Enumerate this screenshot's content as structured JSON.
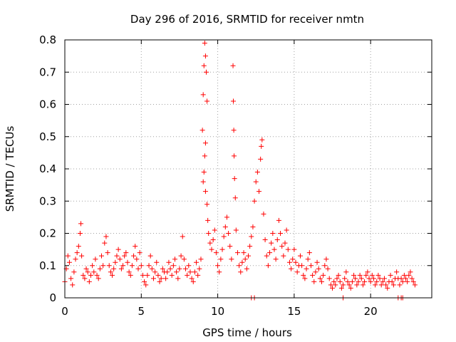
{
  "chart_data": {
    "type": "scatter",
    "title": "Day 296 of 2016, SRMTID for receiver nmtn",
    "xlabel": "GPS time / hours",
    "ylabel": "SRMTID / TECUs",
    "xlim": [
      0,
      24
    ],
    "ylim": [
      0,
      0.8
    ],
    "grid": true,
    "marker": "+",
    "color": "#ff0000",
    "x_ticks": [
      {
        "value": 0,
        "label": "0"
      },
      {
        "value": 5,
        "label": "5"
      },
      {
        "value": 10,
        "label": "10"
      },
      {
        "value": 15,
        "label": "15"
      },
      {
        "value": 20,
        "label": "20"
      }
    ],
    "y_ticks": [
      {
        "value": 0,
        "label": "0"
      },
      {
        "value": 0.1,
        "label": "0.1"
      },
      {
        "value": 0.2,
        "label": "0.2"
      },
      {
        "value": 0.3,
        "label": "0.3"
      },
      {
        "value": 0.4,
        "label": "0.4"
      },
      {
        "value": 0.5,
        "label": "0.5"
      },
      {
        "value": 0.6,
        "label": "0.6"
      },
      {
        "value": 0.7,
        "label": "0.7"
      },
      {
        "value": 0.8,
        "label": "0.8"
      }
    ],
    "series": [
      {
        "name": "SRMTID",
        "points": [
          [
            0.0,
            0.05
          ],
          [
            0.1,
            0.09
          ],
          [
            0.2,
            0.13
          ],
          [
            0.3,
            0.11
          ],
          [
            0.4,
            0.06
          ],
          [
            0.5,
            0.04
          ],
          [
            0.6,
            0.08
          ],
          [
            0.7,
            0.12
          ],
          [
            0.8,
            0.14
          ],
          [
            0.9,
            0.16
          ],
          [
            1.0,
            0.2
          ],
          [
            1.05,
            0.23
          ],
          [
            1.1,
            0.13
          ],
          [
            1.2,
            0.07
          ],
          [
            1.3,
            0.06
          ],
          [
            1.4,
            0.09
          ],
          [
            1.5,
            0.08
          ],
          [
            1.6,
            0.05
          ],
          [
            1.7,
            0.07
          ],
          [
            1.8,
            0.1
          ],
          [
            1.9,
            0.08
          ],
          [
            2.0,
            0.12
          ],
          [
            2.1,
            0.07
          ],
          [
            2.2,
            0.06
          ],
          [
            2.3,
            0.09
          ],
          [
            2.4,
            0.13
          ],
          [
            2.5,
            0.1
          ],
          [
            2.6,
            0.17
          ],
          [
            2.7,
            0.19
          ],
          [
            2.8,
            0.14
          ],
          [
            2.9,
            0.1
          ],
          [
            3.0,
            0.08
          ],
          [
            3.1,
            0.07
          ],
          [
            3.2,
            0.09
          ],
          [
            3.3,
            0.11
          ],
          [
            3.4,
            0.13
          ],
          [
            3.5,
            0.15
          ],
          [
            3.6,
            0.12
          ],
          [
            3.7,
            0.09
          ],
          [
            3.8,
            0.1
          ],
          [
            3.9,
            0.13
          ],
          [
            4.0,
            0.14
          ],
          [
            4.1,
            0.11
          ],
          [
            4.2,
            0.08
          ],
          [
            4.3,
            0.07
          ],
          [
            4.4,
            0.1
          ],
          [
            4.5,
            0.13
          ],
          [
            4.6,
            0.16
          ],
          [
            4.7,
            0.12
          ],
          [
            4.8,
            0.09
          ],
          [
            4.9,
            0.14
          ],
          [
            5.0,
            0.1
          ],
          [
            5.1,
            0.07
          ],
          [
            5.2,
            0.05
          ],
          [
            5.3,
            0.04
          ],
          [
            5.4,
            0.07
          ],
          [
            5.5,
            0.1
          ],
          [
            5.6,
            0.13
          ],
          [
            5.7,
            0.09
          ],
          [
            5.8,
            0.06
          ],
          [
            5.9,
            0.08
          ],
          [
            6.0,
            0.11
          ],
          [
            6.1,
            0.07
          ],
          [
            6.2,
            0.05
          ],
          [
            6.3,
            0.06
          ],
          [
            6.4,
            0.09
          ],
          [
            6.5,
            0.08
          ],
          [
            6.6,
            0.06
          ],
          [
            6.7,
            0.08
          ],
          [
            6.8,
            0.11
          ],
          [
            6.9,
            0.09
          ],
          [
            7.0,
            0.07
          ],
          [
            7.1,
            0.1
          ],
          [
            7.2,
            0.12
          ],
          [
            7.3,
            0.08
          ],
          [
            7.4,
            0.06
          ],
          [
            7.5,
            0.09
          ],
          [
            7.6,
            0.13
          ],
          [
            7.7,
            0.19
          ],
          [
            7.8,
            0.12
          ],
          [
            7.9,
            0.09
          ],
          [
            8.0,
            0.07
          ],
          [
            8.1,
            0.1
          ],
          [
            8.2,
            0.08
          ],
          [
            8.3,
            0.06
          ],
          [
            8.4,
            0.05
          ],
          [
            8.5,
            0.08
          ],
          [
            8.6,
            0.11
          ],
          [
            8.7,
            0.07
          ],
          [
            8.8,
            0.09
          ],
          [
            8.9,
            0.12
          ],
          [
            9.0,
            0.52
          ],
          [
            9.05,
            0.63
          ],
          [
            9.1,
            0.72
          ],
          [
            9.15,
            0.79
          ],
          [
            9.2,
            0.75
          ],
          [
            9.25,
            0.7
          ],
          [
            9.3,
            0.61
          ],
          [
            9.2,
            0.48
          ],
          [
            9.15,
            0.44
          ],
          [
            9.1,
            0.39
          ],
          [
            9.05,
            0.36
          ],
          [
            9.2,
            0.33
          ],
          [
            9.3,
            0.29
          ],
          [
            9.35,
            0.24
          ],
          [
            9.4,
            0.2
          ],
          [
            9.5,
            0.17
          ],
          [
            9.6,
            0.15
          ],
          [
            9.7,
            0.18
          ],
          [
            9.8,
            0.21
          ],
          [
            9.9,
            0.14
          ],
          [
            10.0,
            0.1
          ],
          [
            10.1,
            0.08
          ],
          [
            10.2,
            0.12
          ],
          [
            10.3,
            0.15
          ],
          [
            10.4,
            0.19
          ],
          [
            10.5,
            0.22
          ],
          [
            10.6,
            0.25
          ],
          [
            10.7,
            0.2
          ],
          [
            10.8,
            0.16
          ],
          [
            10.9,
            0.12
          ],
          [
            11.0,
            0.72
          ],
          [
            11.02,
            0.61
          ],
          [
            11.05,
            0.52
          ],
          [
            11.07,
            0.44
          ],
          [
            11.1,
            0.37
          ],
          [
            11.15,
            0.31
          ],
          [
            11.2,
            0.21
          ],
          [
            11.3,
            0.14
          ],
          [
            11.4,
            0.1
          ],
          [
            11.5,
            0.08
          ],
          [
            11.6,
            0.11
          ],
          [
            11.7,
            0.14
          ],
          [
            11.8,
            0.12
          ],
          [
            11.9,
            0.09
          ],
          [
            12.0,
            0.13
          ],
          [
            12.1,
            0.16
          ],
          [
            12.2,
            0.19
          ],
          [
            12.3,
            0.22
          ],
          [
            12.4,
            0.3
          ],
          [
            12.5,
            0.36
          ],
          [
            12.6,
            0.39
          ],
          [
            12.7,
            0.33
          ],
          [
            12.8,
            0.43
          ],
          [
            12.85,
            0.47
          ],
          [
            12.9,
            0.49
          ],
          [
            13.0,
            0.26
          ],
          [
            13.1,
            0.18
          ],
          [
            13.2,
            0.13
          ],
          [
            13.3,
            0.1
          ],
          [
            13.4,
            0.14
          ],
          [
            13.5,
            0.17
          ],
          [
            13.6,
            0.2
          ],
          [
            13.7,
            0.15
          ],
          [
            13.8,
            0.12
          ],
          [
            13.9,
            0.18
          ],
          [
            14.0,
            0.24
          ],
          [
            14.1,
            0.2
          ],
          [
            14.2,
            0.16
          ],
          [
            14.3,
            0.13
          ],
          [
            14.4,
            0.17
          ],
          [
            14.5,
            0.21
          ],
          [
            14.6,
            0.15
          ],
          [
            14.7,
            0.11
          ],
          [
            14.8,
            0.09
          ],
          [
            14.9,
            0.12
          ],
          [
            15.0,
            0.15
          ],
          [
            15.1,
            0.11
          ],
          [
            15.2,
            0.08
          ],
          [
            15.3,
            0.1
          ],
          [
            15.4,
            0.13
          ],
          [
            15.5,
            0.1
          ],
          [
            15.6,
            0.07
          ],
          [
            15.7,
            0.06
          ],
          [
            15.8,
            0.09
          ],
          [
            15.9,
            0.12
          ],
          [
            16.0,
            0.14
          ],
          [
            16.1,
            0.1
          ],
          [
            16.2,
            0.07
          ],
          [
            16.3,
            0.05
          ],
          [
            16.4,
            0.08
          ],
          [
            16.5,
            0.11
          ],
          [
            16.6,
            0.09
          ],
          [
            16.7,
            0.06
          ],
          [
            16.8,
            0.05
          ],
          [
            16.9,
            0.07
          ],
          [
            17.0,
            0.1
          ],
          [
            17.1,
            0.12
          ],
          [
            17.2,
            0.09
          ],
          [
            17.3,
            0.06
          ],
          [
            17.4,
            0.04
          ],
          [
            17.5,
            0.03
          ],
          [
            17.6,
            0.05
          ],
          [
            17.7,
            0.04
          ],
          [
            17.8,
            0.06
          ],
          [
            17.9,
            0.07
          ],
          [
            18.0,
            0.05
          ],
          [
            18.1,
            0.03
          ],
          [
            18.2,
            0.04
          ],
          [
            18.3,
            0.06
          ],
          [
            18.4,
            0.08
          ],
          [
            18.5,
            0.05
          ],
          [
            18.6,
            0.04
          ],
          [
            18.7,
            0.03
          ],
          [
            18.8,
            0.05
          ],
          [
            18.9,
            0.07
          ],
          [
            19.0,
            0.06
          ],
          [
            19.1,
            0.04
          ],
          [
            19.2,
            0.05
          ],
          [
            19.3,
            0.07
          ],
          [
            19.4,
            0.06
          ],
          [
            19.5,
            0.04
          ],
          [
            19.6,
            0.05
          ],
          [
            19.7,
            0.07
          ],
          [
            19.8,
            0.08
          ],
          [
            19.9,
            0.06
          ],
          [
            20.0,
            0.05
          ],
          [
            20.1,
            0.07
          ],
          [
            20.2,
            0.06
          ],
          [
            20.3,
            0.04
          ],
          [
            20.4,
            0.05
          ],
          [
            20.5,
            0.07
          ],
          [
            20.6,
            0.06
          ],
          [
            20.7,
            0.04
          ],
          [
            20.8,
            0.05
          ],
          [
            20.9,
            0.06
          ],
          [
            21.0,
            0.04
          ],
          [
            21.1,
            0.03
          ],
          [
            21.2,
            0.05
          ],
          [
            21.3,
            0.07
          ],
          [
            21.4,
            0.05
          ],
          [
            21.5,
            0.04
          ],
          [
            21.6,
            0.06
          ],
          [
            21.7,
            0.08
          ],
          [
            21.8,
            0.06
          ],
          [
            21.9,
            0.04
          ],
          [
            22.0,
            0.06
          ],
          [
            22.1,
            0.05
          ],
          [
            22.2,
            0.07
          ],
          [
            22.3,
            0.06
          ],
          [
            22.4,
            0.05
          ],
          [
            22.5,
            0.07
          ],
          [
            22.6,
            0.08
          ],
          [
            22.7,
            0.06
          ],
          [
            22.8,
            0.05
          ],
          [
            22.9,
            0.04
          ],
          [
            12.2,
            0.0
          ],
          [
            12.4,
            0.0
          ],
          [
            18.2,
            0.0
          ],
          [
            21.8,
            0.0
          ],
          [
            22.0,
            0.0
          ],
          [
            22.1,
            0.0
          ]
        ]
      }
    ]
  }
}
